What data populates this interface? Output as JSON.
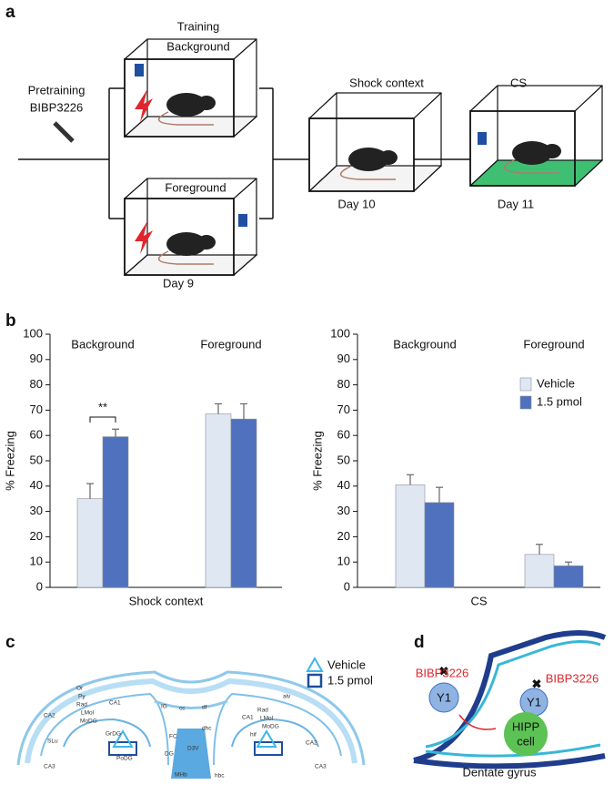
{
  "panel_labels": [
    "a",
    "b",
    "c",
    "d"
  ],
  "panel_a": {
    "training": "Training",
    "background": "Background",
    "pretraining": "Pretraining",
    "drug": "BIBP3226",
    "foreground": "Foreground",
    "day9": "Day 9",
    "shock_context": "Shock context",
    "day10": "Day 10",
    "cs": "CS",
    "day11": "Day 11"
  },
  "chart_data": [
    {
      "type": "bar",
      "categories": [
        "Background",
        "Foreground"
      ],
      "xlabel": "Shock context",
      "ylabel": "% Freezing",
      "ylim": [
        0,
        100
      ],
      "yticks": [
        0,
        10,
        20,
        30,
        40,
        50,
        60,
        70,
        80,
        90,
        100
      ],
      "annotation": "**",
      "series": [
        {
          "color": "#dfe7f3",
          "values": [
            35,
            68.5
          ],
          "errors": [
            6,
            4
          ]
        },
        {
          "color": "#4f71be",
          "values": [
            59.5,
            66.5
          ],
          "errors": [
            3,
            6
          ]
        }
      ]
    },
    {
      "type": "bar",
      "categories": [
        "Background",
        "Foreground"
      ],
      "xlabel": "CS",
      "ylabel": "% Freezing",
      "ylim": [
        0,
        100
      ],
      "yticks": [
        0,
        10,
        20,
        30,
        40,
        50,
        60,
        70,
        80,
        90,
        100
      ],
      "legend": "upper right",
      "series": [
        {
          "name": "Vehicle",
          "color": "#dfe7f3",
          "values": [
            40.5,
            13
          ],
          "errors": [
            4,
            4
          ]
        },
        {
          "name": "1.5 pmol",
          "color": "#4f71be",
          "values": [
            33.5,
            8.5
          ],
          "errors": [
            6,
            1.5
          ]
        }
      ]
    }
  ],
  "panel_c": {
    "legend": [
      "Vehicle",
      "1.5 pmol"
    ],
    "labels": [
      "Or",
      "Py",
      "Rad",
      "LMol",
      "MoDG",
      "CA1",
      "GrDG",
      "PoDG",
      "CA2",
      "SLu",
      "CA3",
      "DG",
      "FC",
      "D3V",
      "MHb",
      "IG",
      "cc",
      "df",
      "dhc",
      "alv",
      "CA1",
      "Rad",
      "LMol",
      "MoDG",
      "hif",
      "CA2",
      "CA3",
      "hbc"
    ]
  },
  "panel_d": {
    "drug_left": "BIBP3226",
    "drug_right": "BIBP3226",
    "receptor_left": "Y1",
    "receptor_right": "Y1",
    "cell_line1": "HIPP",
    "cell_line2": "cell",
    "region": "Dentate gyrus"
  }
}
